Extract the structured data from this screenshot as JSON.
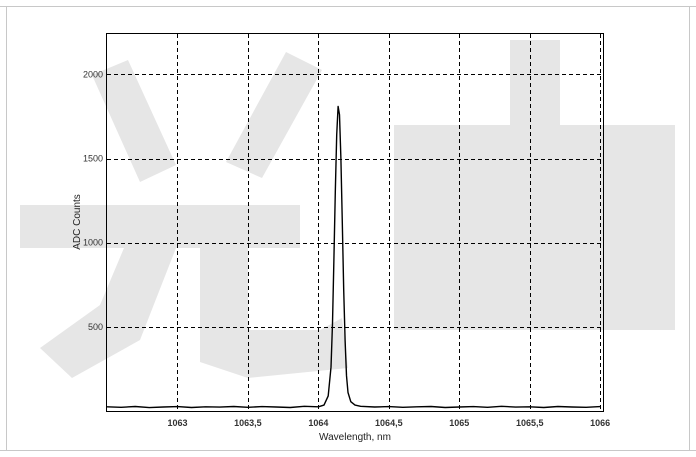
{
  "chart_data": {
    "type": "line",
    "title": "",
    "xlabel": "Wavelength, nm",
    "ylabel": "ADC Counts",
    "xlim": [
      1062.5,
      1066.02
    ],
    "ylim": [
      0,
      2240
    ],
    "x_ticks": [
      1063,
      1063.5,
      1064,
      1064.5,
      1065,
      1065.5,
      1066
    ],
    "x_tick_labels": [
      "1063",
      "1063,5",
      "1064",
      "1064,5",
      "1065",
      "1065,5",
      "1066"
    ],
    "y_ticks": [
      500,
      1000,
      1500,
      2000
    ],
    "y_tick_labels": [
      "500",
      "1000",
      "1500",
      "2000"
    ],
    "grid": true,
    "grid_style": "dashed",
    "legend": "none",
    "series": [
      {
        "color": "#000000",
        "x": [
          1062.5,
          1062.6,
          1062.7,
          1062.8,
          1062.9,
          1063.0,
          1063.1,
          1063.2,
          1063.3,
          1063.4,
          1063.5,
          1063.6,
          1063.7,
          1063.8,
          1063.9,
          1064.0,
          1064.04,
          1064.07,
          1064.09,
          1064.1,
          1064.11,
          1064.12,
          1064.13,
          1064.14,
          1064.15,
          1064.16,
          1064.17,
          1064.18,
          1064.19,
          1064.2,
          1064.21,
          1064.23,
          1064.26,
          1064.3,
          1064.4,
          1064.5,
          1064.6,
          1064.7,
          1064.8,
          1064.9,
          1065.0,
          1065.1,
          1065.2,
          1065.3,
          1065.4,
          1065.5,
          1065.6,
          1065.7,
          1065.8,
          1065.9,
          1066.0
        ],
        "y": [
          25,
          22,
          27,
          20,
          24,
          26,
          21,
          25,
          23,
          27,
          22,
          26,
          24,
          21,
          28,
          25,
          35,
          90,
          260,
          520,
          900,
          1300,
          1640,
          1810,
          1760,
          1500,
          1120,
          720,
          420,
          210,
          110,
          55,
          35,
          28,
          24,
          26,
          22,
          25,
          27,
          21,
          24,
          26,
          22,
          28,
          23,
          25,
          21,
          27,
          24,
          22,
          26
        ]
      }
    ]
  },
  "watermark": {
    "color": "#e6e6e6"
  }
}
